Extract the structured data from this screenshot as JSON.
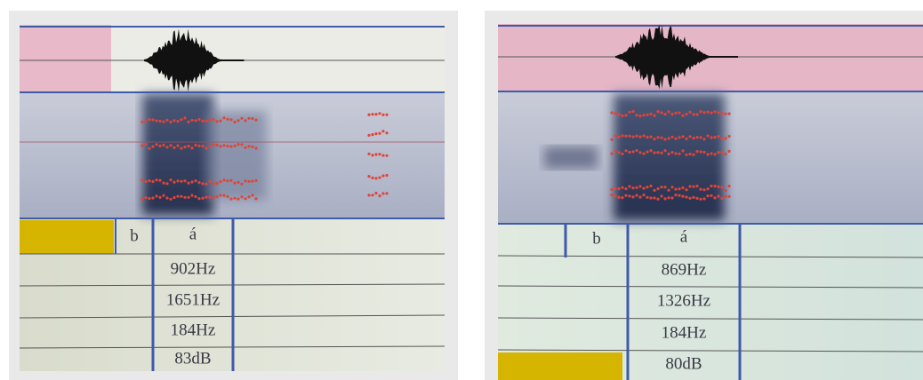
{
  "panels": [
    {
      "tier": [
        "b",
        "á"
      ],
      "measurements": [
        "902Hz",
        "1651Hz",
        "184Hz",
        "83dB"
      ]
    },
    {
      "tier": [
        "b",
        "á"
      ],
      "measurements": [
        "869Hz",
        "1326Hz",
        "184Hz",
        "80dB"
      ]
    }
  ]
}
